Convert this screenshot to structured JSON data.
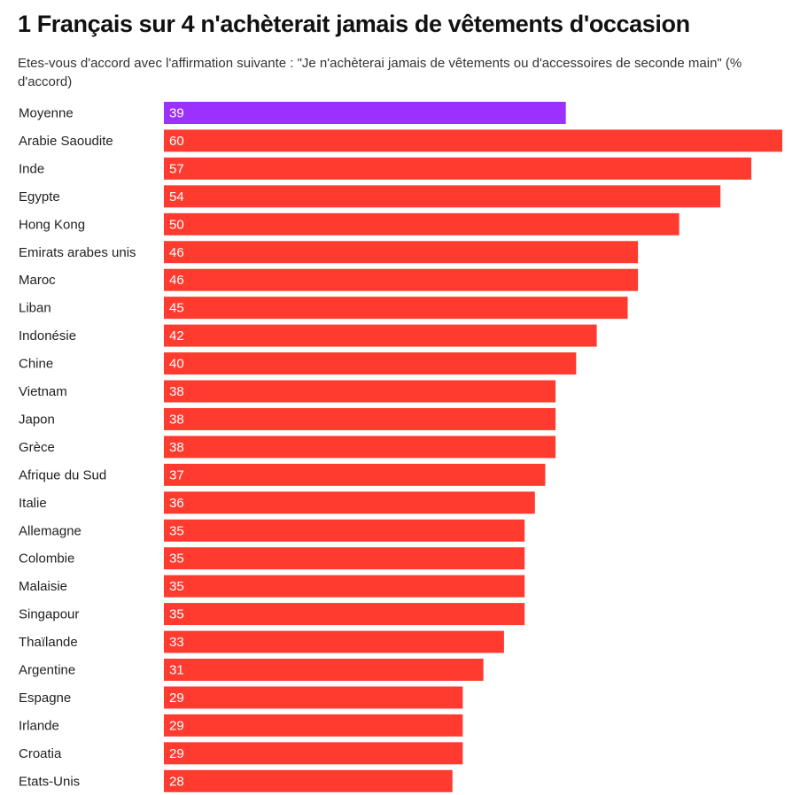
{
  "chart_data": {
    "type": "bar",
    "orientation": "horizontal",
    "title": "1 Français sur 4 n'achèterait jamais de vêtements d'occasion",
    "subtitle": "Etes-vous d'accord avec l'affirmation suivante : \"Je n'achèterai jamais de vêtements ou d'accessoires de seconde main\" (% d'accord)",
    "categories": [
      "Moyenne",
      "Arabie Saoudite",
      "Inde",
      "Egypte",
      "Hong Kong",
      "Emirats arabes unis",
      "Maroc",
      "Liban",
      "Indonésie",
      "Chine",
      "Vietnam",
      "Japon",
      "Grèce",
      "Afrique du Sud",
      "Italie",
      "Allemagne",
      "Colombie",
      "Malaisie",
      "Singapour",
      "Thaïlande",
      "Argentine",
      "Espagne",
      "Irlande",
      "Croatia",
      "Etats-Unis"
    ],
    "values": [
      39,
      60,
      57,
      54,
      50,
      46,
      46,
      45,
      42,
      40,
      38,
      38,
      38,
      37,
      36,
      35,
      35,
      35,
      35,
      33,
      31,
      29,
      29,
      29,
      28
    ],
    "xlim": [
      0,
      60
    ],
    "xlabel": "",
    "ylabel": "",
    "grid": false,
    "legend": "none",
    "highlight_category": "Moyenne",
    "colors": {
      "bar": "#ff3b2f",
      "highlight": "#9b30ff",
      "value_text": "#ffffff"
    }
  }
}
